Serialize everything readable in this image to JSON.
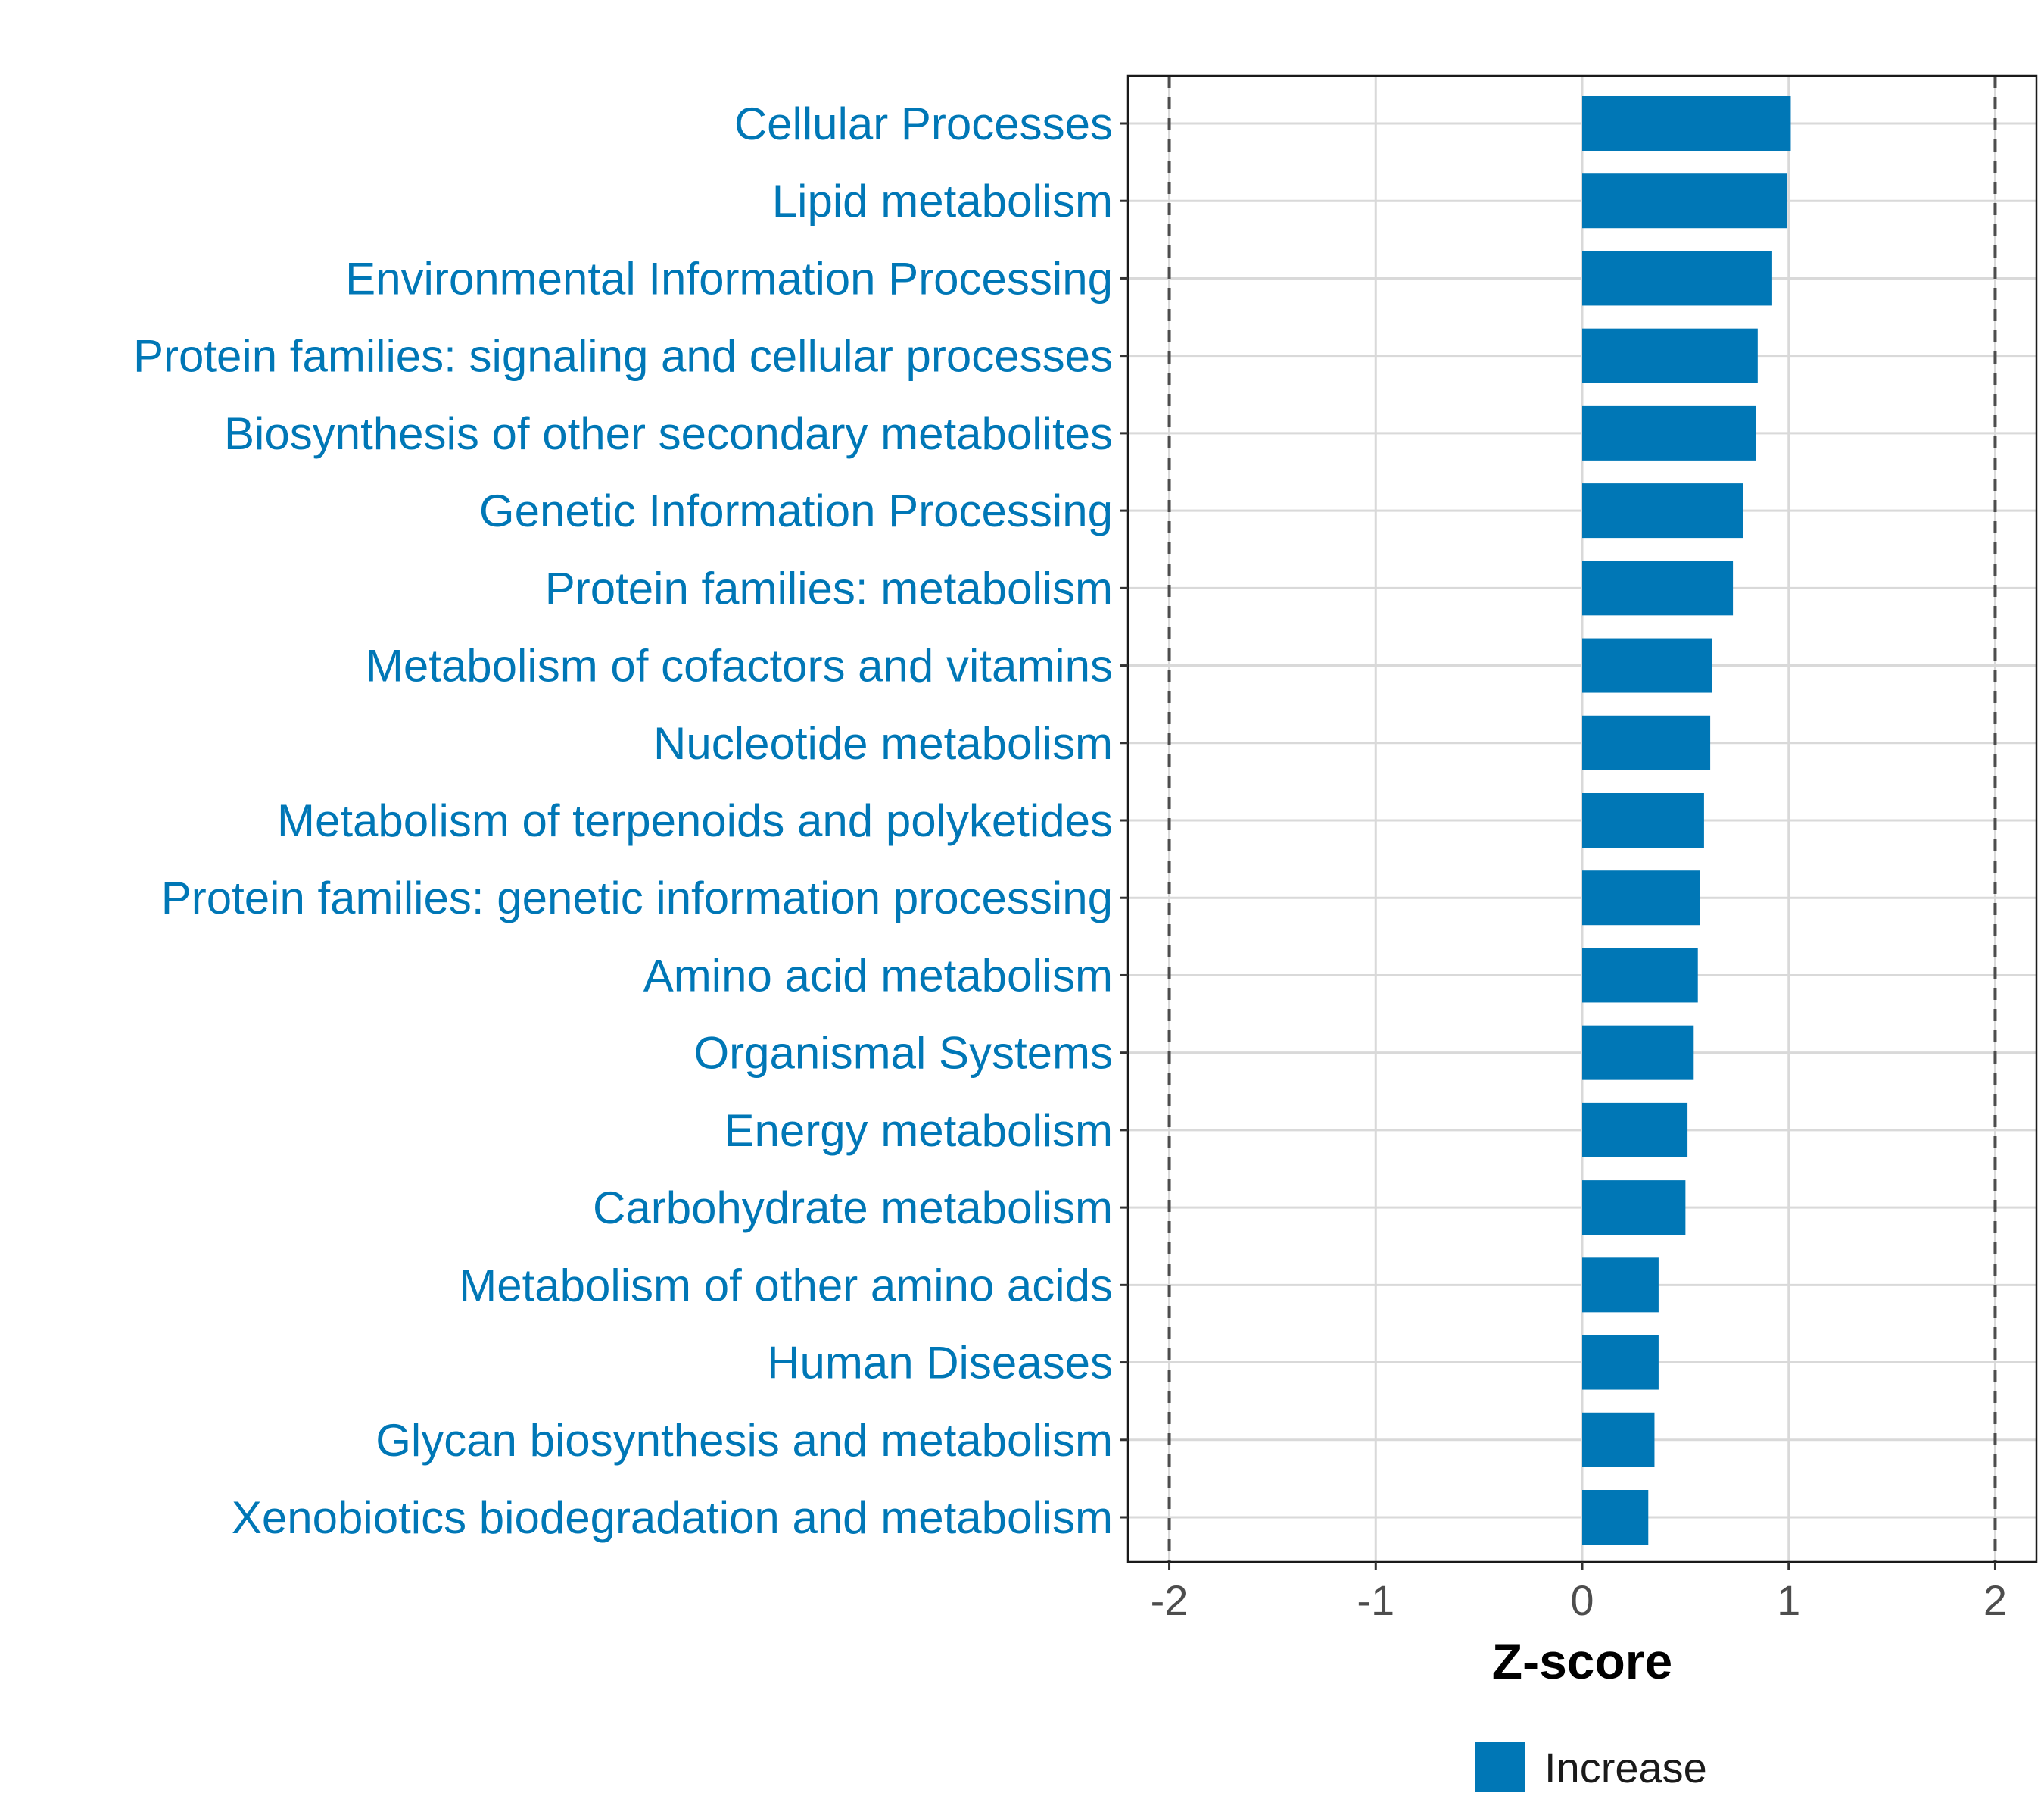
{
  "chart_data": {
    "type": "bar",
    "orientation": "horizontal",
    "categories": [
      "Cellular Processes",
      "Lipid metabolism",
      "Environmental Information Processing",
      "Protein families: signaling and cellular processes",
      "Biosynthesis of other secondary metabolites",
      "Genetic Information Processing",
      "Protein families: metabolism",
      "Metabolism of cofactors and vitamins",
      "Nucleotide metabolism",
      "Metabolism of terpenoids and polyketides",
      "Protein families: genetic information processing",
      "Amino acid metabolism",
      "Organismal Systems",
      "Energy metabolism",
      "Carbohydrate metabolism",
      "Metabolism of other amino acids",
      "Human Diseases",
      "Glycan biosynthesis and metabolism",
      "Xenobiotics biodegradation and metabolism"
    ],
    "values": [
      1.01,
      0.99,
      0.92,
      0.85,
      0.84,
      0.78,
      0.73,
      0.63,
      0.62,
      0.59,
      0.57,
      0.56,
      0.54,
      0.51,
      0.5,
      0.37,
      0.37,
      0.35,
      0.32
    ],
    "xlabel": "Z-score",
    "ylabel": "",
    "xlim": [
      -2.2,
      2.2
    ],
    "xticks": [
      "-2",
      "-1",
      "0",
      "1",
      "2"
    ],
    "xtick_values": [
      -2,
      -1,
      0,
      1,
      2
    ],
    "reference_lines": [
      -2,
      2
    ],
    "grid": true,
    "legend": {
      "position": "bottom",
      "label": "Increase"
    },
    "colors": {
      "bar": "#0077b6",
      "label": "#0077b6",
      "grid": "#d9d9d9",
      "ref_line": "#4d4d4d"
    }
  }
}
